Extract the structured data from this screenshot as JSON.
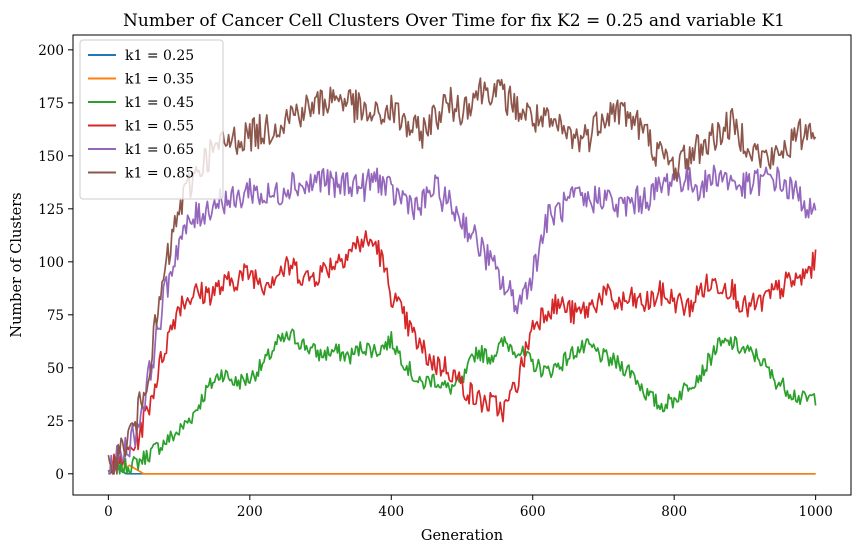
{
  "chart_data": {
    "type": "line",
    "title": "Number of Cancer Cell Clusters Over Time for fix K2 = 0.25 and variable K1",
    "xlabel": "Generation",
    "ylabel": "Number of Clusters",
    "xlim": [
      -50,
      1050
    ],
    "ylim": [
      -10,
      207
    ],
    "xticks": [
      0,
      200,
      400,
      600,
      800,
      1000
    ],
    "yticks": [
      0,
      25,
      50,
      75,
      100,
      125,
      150,
      175,
      200
    ],
    "grid": false,
    "legend_position": "top-left",
    "series": [
      {
        "name": "k1 = 0.25",
        "color": "#1f77b4",
        "noise": 0,
        "x": [
          0,
          5,
          10,
          15,
          20,
          25,
          30,
          1000
        ],
        "y": [
          1,
          2,
          3,
          2,
          1,
          0,
          0,
          0
        ]
      },
      {
        "name": "k1 = 0.35",
        "color": "#ff7f0e",
        "noise": 0,
        "x": [
          0,
          10,
          20,
          30,
          40,
          45,
          50,
          1000
        ],
        "y": [
          1,
          3,
          2,
          4,
          2,
          1,
          0,
          0
        ]
      },
      {
        "name": "k1 = 0.45",
        "color": "#2ca02c",
        "noise": 4,
        "x": [
          0,
          40,
          60,
          80,
          100,
          120,
          140,
          160,
          180,
          200,
          220,
          240,
          260,
          280,
          300,
          320,
          340,
          360,
          380,
          400,
          420,
          440,
          460,
          480,
          500,
          520,
          540,
          560,
          580,
          600,
          620,
          640,
          660,
          680,
          700,
          720,
          740,
          760,
          780,
          800,
          820,
          840,
          860,
          880,
          900,
          920,
          940,
          960,
          980,
          1000
        ],
        "y": [
          1,
          5,
          10,
          15,
          20,
          28,
          40,
          48,
          43,
          45,
          52,
          62,
          65,
          60,
          56,
          58,
          55,
          60,
          58,
          63,
          52,
          42,
          45,
          40,
          43,
          58,
          55,
          62,
          58,
          52,
          48,
          52,
          58,
          60,
          55,
          52,
          48,
          38,
          32,
          35,
          42,
          48,
          60,
          62,
          58,
          55,
          45,
          40,
          35,
          36
        ]
      },
      {
        "name": "k1 = 0.55",
        "color": "#d62728",
        "noise": 6,
        "x": [
          0,
          20,
          40,
          60,
          80,
          100,
          120,
          140,
          160,
          180,
          200,
          220,
          240,
          260,
          280,
          300,
          320,
          340,
          360,
          380,
          400,
          420,
          440,
          460,
          480,
          500,
          520,
          540,
          560,
          580,
          600,
          620,
          640,
          660,
          680,
          700,
          720,
          740,
          760,
          780,
          800,
          820,
          840,
          860,
          880,
          900,
          920,
          940,
          960,
          980,
          1000
        ],
        "y": [
          1,
          8,
          15,
          35,
          60,
          80,
          85,
          85,
          88,
          92,
          95,
          90,
          95,
          98,
          92,
          95,
          100,
          105,
          110,
          108,
          85,
          72,
          60,
          52,
          50,
          42,
          35,
          33,
          30,
          45,
          70,
          78,
          80,
          75,
          78,
          85,
          80,
          82,
          80,
          85,
          82,
          78,
          88,
          90,
          88,
          78,
          80,
          85,
          90,
          92,
          100
        ]
      },
      {
        "name": "k1 = 0.65",
        "color": "#9467bd",
        "noise": 7,
        "x": [
          0,
          20,
          40,
          60,
          80,
          100,
          120,
          140,
          160,
          180,
          200,
          220,
          240,
          260,
          280,
          300,
          320,
          340,
          360,
          380,
          400,
          420,
          440,
          460,
          480,
          500,
          520,
          540,
          560,
          580,
          600,
          620,
          640,
          660,
          680,
          700,
          720,
          740,
          760,
          780,
          800,
          820,
          840,
          860,
          880,
          900,
          920,
          940,
          960,
          980,
          1000
        ],
        "y": [
          1,
          10,
          20,
          50,
          85,
          110,
          120,
          125,
          130,
          128,
          135,
          130,
          132,
          138,
          135,
          140,
          135,
          138,
          135,
          140,
          132,
          130,
          125,
          135,
          128,
          120,
          110,
          100,
          88,
          80,
          95,
          120,
          125,
          130,
          128,
          132,
          125,
          128,
          130,
          135,
          140,
          138,
          135,
          142,
          138,
          135,
          138,
          140,
          135,
          130,
          120
        ]
      },
      {
        "name": "k1 = 0.85",
        "color": "#8c564b",
        "noise": 8,
        "x": [
          0,
          20,
          40,
          60,
          80,
          100,
          120,
          140,
          160,
          180,
          200,
          220,
          240,
          260,
          280,
          300,
          320,
          340,
          360,
          380,
          400,
          420,
          440,
          460,
          480,
          500,
          520,
          540,
          560,
          580,
          600,
          620,
          640,
          660,
          680,
          700,
          720,
          740,
          760,
          780,
          800,
          820,
          840,
          860,
          880,
          900,
          920,
          940,
          960,
          980,
          1000
        ],
        "y": [
          1,
          12,
          25,
          55,
          95,
          125,
          140,
          150,
          155,
          158,
          160,
          162,
          165,
          170,
          172,
          175,
          178,
          176,
          170,
          168,
          172,
          165,
          160,
          168,
          175,
          172,
          180,
          182,
          178,
          172,
          168,
          165,
          162,
          158,
          160,
          170,
          172,
          168,
          160,
          150,
          145,
          150,
          155,
          160,
          165,
          158,
          150,
          148,
          155,
          160,
          165
        ]
      }
    ]
  }
}
